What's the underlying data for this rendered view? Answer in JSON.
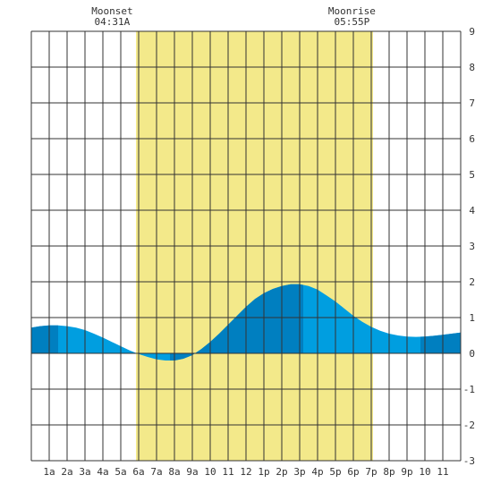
{
  "chart_data": {
    "type": "area",
    "title": "",
    "xlabel": "",
    "ylabel": "",
    "x_unit": "hours",
    "xlim": [
      0,
      24
    ],
    "ylim": [
      -3,
      9
    ],
    "y_ticks": [
      9,
      8,
      7,
      6,
      5,
      4,
      3,
      2,
      1,
      0,
      -1,
      -2,
      -3
    ],
    "x_ticks": [
      {
        "x": 1,
        "label": "1a"
      },
      {
        "x": 2,
        "label": "2a"
      },
      {
        "x": 3,
        "label": "3a"
      },
      {
        "x": 4,
        "label": "4a"
      },
      {
        "x": 5,
        "label": "5a"
      },
      {
        "x": 6,
        "label": "6a"
      },
      {
        "x": 7,
        "label": "7a"
      },
      {
        "x": 8,
        "label": "8a"
      },
      {
        "x": 9,
        "label": "9a"
      },
      {
        "x": 10,
        "label": "10"
      },
      {
        "x": 11,
        "label": "11"
      },
      {
        "x": 12,
        "label": "12"
      },
      {
        "x": 13,
        "label": "1p"
      },
      {
        "x": 14,
        "label": "2p"
      },
      {
        "x": 15,
        "label": "3p"
      },
      {
        "x": 16,
        "label": "4p"
      },
      {
        "x": 17,
        "label": "5p"
      },
      {
        "x": 18,
        "label": "6p"
      },
      {
        "x": 19,
        "label": "7p"
      },
      {
        "x": 20,
        "label": "8p"
      },
      {
        "x": 21,
        "label": "9p"
      },
      {
        "x": 22,
        "label": "10"
      },
      {
        "x": 23,
        "label": "11"
      }
    ],
    "grid": true,
    "daylight": {
      "start": 5.85,
      "end": 19.1
    },
    "tide_series": {
      "x": [
        0,
        0.5,
        1,
        1.5,
        2,
        2.5,
        3,
        3.5,
        4,
        4.5,
        5,
        5.5,
        6,
        6.5,
        7,
        7.5,
        8,
        8.5,
        9,
        9.5,
        10,
        10.5,
        11,
        11.5,
        12,
        12.5,
        13,
        13.5,
        14,
        14.5,
        15,
        15.5,
        16,
        16.5,
        17,
        17.5,
        18,
        18.5,
        19,
        19.5,
        20,
        20.5,
        21,
        21.5,
        22,
        22.5,
        23,
        23.5,
        24
      ],
      "y": [
        0.72,
        0.76,
        0.78,
        0.78,
        0.76,
        0.72,
        0.65,
        0.55,
        0.44,
        0.32,
        0.2,
        0.08,
        -0.02,
        -0.1,
        -0.17,
        -0.2,
        -0.2,
        -0.15,
        -0.05,
        0.12,
        0.32,
        0.55,
        0.8,
        1.05,
        1.3,
        1.52,
        1.68,
        1.8,
        1.88,
        1.93,
        1.93,
        1.88,
        1.78,
        1.62,
        1.45,
        1.25,
        1.05,
        0.88,
        0.74,
        0.63,
        0.55,
        0.5,
        0.47,
        0.46,
        0.47,
        0.49,
        0.52,
        0.55,
        0.58
      ]
    },
    "tide_events": [
      {
        "type": "high",
        "time": 1.5,
        "height": 0.78
      },
      {
        "type": "low",
        "time": 7.75,
        "height": -0.2
      },
      {
        "type": "high",
        "time": 15.2,
        "height": 1.93
      },
      {
        "type": "low",
        "time": 21.75,
        "height": 0.46
      }
    ],
    "colors": {
      "daylight": "#f3e98a",
      "tide_fill": "#009ee0",
      "tide_dark": "#007fc0",
      "grid": "#333333",
      "background": "#ffffff"
    },
    "annotations": [
      {
        "name": "moonset",
        "title": "Moonset",
        "time_label": "04:31A",
        "x": 4.52
      },
      {
        "name": "moonrise",
        "title": "Moonrise",
        "time_label": "05:55P",
        "x": 17.92
      }
    ]
  }
}
